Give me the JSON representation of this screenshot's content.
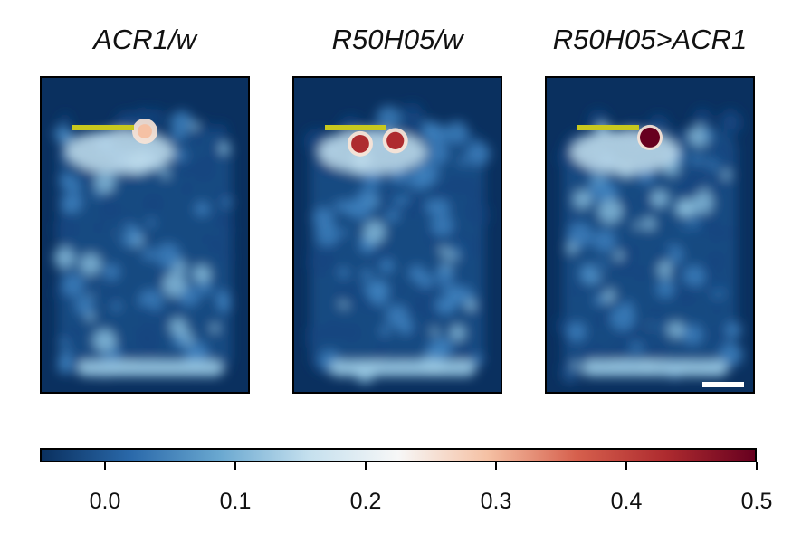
{
  "chart_data": {
    "type": "heatmap",
    "panels": [
      {
        "title": "ACR1/w",
        "hotspots": [
          {
            "x": 0.5,
            "y": 0.17,
            "value": 0.28
          }
        ],
        "scale_bar": false
      },
      {
        "title": "R50H05/w",
        "hotspots": [
          {
            "x": 0.32,
            "y": 0.21,
            "value": 0.42
          },
          {
            "x": 0.49,
            "y": 0.2,
            "value": 0.4
          }
        ],
        "scale_bar": false
      },
      {
        "title": "R50H05>ACR1",
        "hotspots": [
          {
            "x": 0.5,
            "y": 0.19,
            "value": 0.5
          }
        ],
        "scale_bar": true
      }
    ],
    "colorbar": {
      "colormap": "RdBu_r",
      "vmin": -0.05,
      "vmax": 0.5,
      "ticks": [
        0.0,
        0.1,
        0.2,
        0.3,
        0.4,
        0.5
      ],
      "tick_labels": [
        "0.0",
        "0.1",
        "0.2",
        "0.3",
        "0.4",
        "0.5"
      ],
      "colors": [
        "#0a305f",
        "#2a69aa",
        "#6aa8d0",
        "#c5e0ee",
        "#f7f7f7",
        "#f5c1a4",
        "#d6604d",
        "#ae2b2f",
        "#67001f"
      ]
    },
    "marker_color": "#c8c81e",
    "scale_bar_color": "#ffffff"
  }
}
